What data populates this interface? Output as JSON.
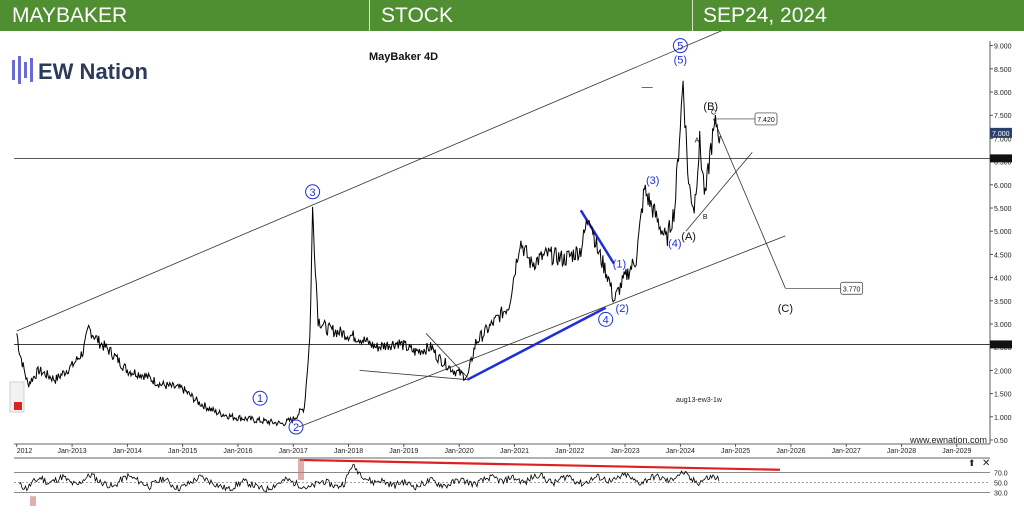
{
  "banner": {
    "left_title": "MAYBAKER",
    "center_title": "STOCK",
    "right_title": "SEP24, 2024",
    "background_color": "#4f8f32"
  },
  "chart_data": {
    "type": "line",
    "title": "MayBaker 4D",
    "logo_text": "EW Nation",
    "watermark": "www.ewnation.com",
    "footnote": "aug13-ew3-1w",
    "x_tick_labels": [
      "2012",
      "Jan-2013",
      "Jan-2014",
      "Jan-2015",
      "Jan-2016",
      "Jan-2017",
      "Jan-2018",
      "Jan-2019",
      "Jan-2020",
      "Jan-2021",
      "Jan-2022",
      "Jan-2023",
      "Jan-2024",
      "Jan-2025",
      "Jan-2026",
      "Jan-2027",
      "Jan-2028",
      "Jan-2029"
    ],
    "y_tick_labels": [
      "0.50",
      "1.000",
      "1.500",
      "2.000",
      "2.500",
      "3.000",
      "3.500",
      "4.000",
      "4.500",
      "5.000",
      "5.500",
      "6.000",
      "6.500",
      "7.000",
      "7.500",
      "8.000",
      "8.500",
      "9.000"
    ],
    "ylim": [
      0.5,
      9.1
    ],
    "xlim": [
      2011.95,
      2029.6
    ],
    "grid": false,
    "series": [
      {
        "color": "#000000",
        "x": [
          2012.0,
          2012.05,
          2012.2,
          2012.4,
          2012.7,
          2013.0,
          2013.2,
          2013.3,
          2013.5,
          2013.7,
          2014.0,
          2014.3,
          2014.6,
          2015.0,
          2015.3,
          2015.6,
          2015.9,
          2016.2,
          2016.5,
          2016.8,
          2017.0,
          2017.2,
          2017.3,
          2017.35,
          2017.45,
          2017.6,
          2017.9,
          2018.2,
          2018.5,
          2018.9,
          2019.2,
          2019.5,
          2019.6,
          2019.9,
          2020.15,
          2020.3,
          2020.6,
          2020.9,
          2021.1,
          2021.3,
          2021.6,
          2021.9,
          2022.2,
          2022.35,
          2022.5,
          2022.7,
          2022.8,
          2022.95,
          2023.2,
          2023.35,
          2023.6,
          2023.75,
          2023.9,
          2024.05,
          2024.15,
          2024.25,
          2024.35,
          2024.45,
          2024.55,
          2024.65,
          2024.72
        ],
        "values": [
          2.8,
          2.4,
          1.7,
          2.0,
          1.8,
          2.1,
          2.4,
          2.9,
          2.6,
          2.4,
          2.0,
          1.9,
          1.7,
          1.6,
          1.3,
          1.1,
          1.0,
          0.95,
          0.9,
          0.85,
          0.95,
          1.2,
          2.7,
          5.45,
          3.1,
          2.9,
          2.8,
          2.7,
          2.5,
          2.6,
          2.4,
          2.5,
          2.3,
          2.0,
          1.85,
          2.6,
          3.0,
          3.4,
          4.8,
          4.3,
          4.5,
          4.4,
          4.6,
          5.4,
          4.6,
          4.0,
          3.5,
          3.9,
          4.4,
          5.9,
          5.2,
          4.8,
          5.5,
          8.25,
          6.0,
          5.5,
          6.9,
          5.7,
          6.8,
          7.35,
          7.05
        ]
      }
    ],
    "rsi": {
      "color": "#000000",
      "ylim": [
        0,
        100
      ],
      "tick_labels": [
        "70.0",
        "50.0",
        "30.0"
      ],
      "values": [
        45,
        38,
        52,
        60,
        48,
        55,
        62,
        50,
        44,
        58,
        66,
        52,
        47,
        40,
        55,
        63,
        57,
        49,
        42,
        51,
        59,
        46,
        38,
        44,
        53,
        61,
        55,
        48,
        41,
        36,
        45,
        52,
        47,
        40,
        35,
        42,
        50,
        56,
        49,
        44,
        38,
        46,
        53,
        47,
        41,
        49,
        85,
        72,
        58,
        50,
        55,
        48,
        44,
        52,
        46,
        41,
        49,
        55,
        47,
        43,
        50,
        56,
        51,
        46,
        53,
        60,
        58,
        50,
        62,
        56,
        49,
        61,
        67,
        55,
        48,
        58,
        64,
        53,
        47,
        55,
        62,
        57,
        51,
        60,
        66,
        54,
        49,
        57,
        63,
        58,
        52,
        65,
        70,
        55,
        50,
        58,
        62,
        56
      ]
    },
    "annotations": [
      {
        "text": "1",
        "x": 2016.4,
        "y": 1.4,
        "style": "circle"
      },
      {
        "text": "2",
        "x": 2017.05,
        "y": 0.78,
        "style": "circle"
      },
      {
        "text": "3",
        "x": 2017.35,
        "y": 5.85,
        "style": "circle"
      },
      {
        "text": "4",
        "x": 2022.65,
        "y": 3.1,
        "style": "circle"
      },
      {
        "text": "5",
        "x": 2024.0,
        "y": 9.0,
        "style": "circle"
      },
      {
        "text": "(1)",
        "x": 2022.9,
        "y": 4.3,
        "style": "blue"
      },
      {
        "text": "(2)",
        "x": 2022.95,
        "y": 3.35,
        "style": "blue"
      },
      {
        "text": "(3)",
        "x": 2023.5,
        "y": 6.1,
        "style": "blue"
      },
      {
        "text": "(4)",
        "x": 2023.9,
        "y": 4.75,
        "style": "blue"
      },
      {
        "text": "(5)",
        "x": 2024.0,
        "y": 8.7,
        "style": "blue"
      },
      {
        "text": "(A)",
        "x": 2024.15,
        "y": 4.9,
        "style": "black"
      },
      {
        "text": "(B)",
        "x": 2024.55,
        "y": 7.7,
        "style": "black"
      },
      {
        "text": "(C)",
        "x": 2025.9,
        "y": 3.35,
        "style": "black"
      },
      {
        "text": "A",
        "x": 2024.3,
        "y": 7.0,
        "style": "small"
      },
      {
        "text": "B",
        "x": 2024.45,
        "y": 5.35,
        "style": "small"
      },
      {
        "text": "C",
        "x": 2024.6,
        "y": 7.6,
        "style": "small"
      }
    ],
    "price_labels": [
      {
        "text": "7.420",
        "x": 2025.35,
        "y": 7.42
      },
      {
        "text": "3.770",
        "x": 2026.9,
        "y": 3.77
      }
    ],
    "right_axis_marker": "7.000"
  }
}
